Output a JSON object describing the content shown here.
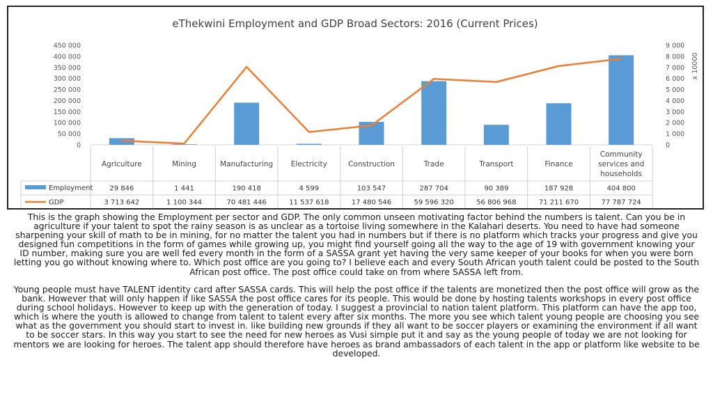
{
  "chart_data": {
    "type": "bar",
    "title": "eThekwini Employment and GDP Broad Sectors: 2016 (Current Prices)",
    "categories": [
      "Agriculture",
      "Mining",
      "Manufacturing",
      "Electricity",
      "Construction",
      "Trade",
      "Transport",
      "Finance",
      "Community services and households"
    ],
    "category_lines": [
      [
        "Agriculture"
      ],
      [
        "Mining"
      ],
      [
        "Manufacturing"
      ],
      [
        "Electricity"
      ],
      [
        "Construction"
      ],
      [
        "Trade"
      ],
      [
        "Transport"
      ],
      [
        "Finance"
      ],
      [
        "Community",
        "services and",
        "households"
      ]
    ],
    "series": [
      {
        "name": "Employment",
        "type": "bar",
        "axis": "left",
        "color": "#5b9bd5",
        "values": [
          29846,
          1441,
          190418,
          4599,
          103547,
          287704,
          90389,
          187928,
          404800
        ],
        "labels": [
          "29 846",
          "1 441",
          "190 418",
          "4 599",
          "103 547",
          "287 704",
          "90 389",
          "187 928",
          "404 800"
        ]
      },
      {
        "name": "GDP",
        "type": "line",
        "axis": "right",
        "color": "#ed7d31",
        "values": [
          3713642,
          1100344,
          70481446,
          11537618,
          17480546,
          59596320,
          56806968,
          71211670,
          77787724
        ],
        "labels": [
          "3 713 642",
          "1 100 344",
          "70 481 446",
          "11 537 618",
          "17 480 546",
          "59 596 320",
          "56 806 968",
          "71 211 670",
          "77 787 724"
        ]
      }
    ],
    "left_axis": {
      "ylim": [
        0,
        450000
      ],
      "ticks": [
        "0",
        "50 000",
        "100 000",
        "150 000",
        "200 000",
        "250 000",
        "300 000",
        "350 000",
        "400 000",
        "450 000"
      ]
    },
    "right_axis": {
      "ylim": [
        0,
        9000
      ],
      "unit_scale": 10000,
      "label": "x 10000",
      "ticks": [
        "0",
        "1 000",
        "2 000",
        "3 000",
        "4 000",
        "5 000",
        "6 000",
        "7 000",
        "8 000",
        "9 000"
      ]
    },
    "data_table": true,
    "grid": false
  },
  "text": {
    "paragraph_1": "This is the graph showing the Employment per sector and GDP. The only common unseen motivating factor behind the numbers is talent. Can you be in agriculture if your talent to spot the rainy season is as unclear as a tortoise living somewhere in the Kalahari deserts. You need to have had someone sharpening your skill of math to be in mining, for no matter the talent you had in numbers but if there is no platform which tracks your progress and give you designed fun competitions in the form of games while growing up, you might find yourself going all the way to the age of 19 with government knowing your ID number, making sure you are well fed every month in the form of a SASSA grant yet having the very same keeper of your books for when you were born letting you go without knowing where to. Which post office are you going to? I believe each and every South African youth talent could be posted to the South African post office. The post office could take on from where SASSA left from.",
    "paragraph_2": "Young people must have TALENT identity card after SASSA cards. This will help the post office if the talents are monetized then the post office will grow as the bank. However that will only happen if like SASSA the post office cares for its people. This would be done by hosting talents workshops in every post office during school holidays. However to keep up with the generation of today. I suggest a provincial to nation talent platform. This platform can have the app too, which is where the youth is allowed to change from talent to talent every after six months. The more you see which talent young people are choosing you see what as the government you should start to invest in. like building new grounds if they all want to be soccer players or examining the environment if all want to be soccer stars. In this way you start to see the need for new heroes as Vusi simple put it and say as the young people of today we are not looking for mentors we are looking for heroes. The talent app should therefore have heroes as brand ambassadors of each talent in the app or platform like website to be developed."
  }
}
